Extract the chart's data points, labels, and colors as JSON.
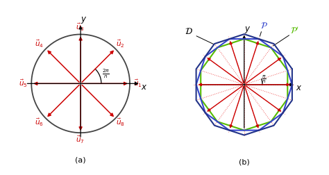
{
  "n_a": 8,
  "n_b": 10,
  "circle_color": "#444444",
  "arrow_color": "#cc0000",
  "axis_color": "#000000",
  "blue_poly_color": "#3344cc",
  "dark_poly_color": "#223388",
  "green_poly_color": "#55bb00",
  "dot_line_color": "#ee5555",
  "bg_color": "#ffffff",
  "label_a": "(a)",
  "label_b": "(b)"
}
